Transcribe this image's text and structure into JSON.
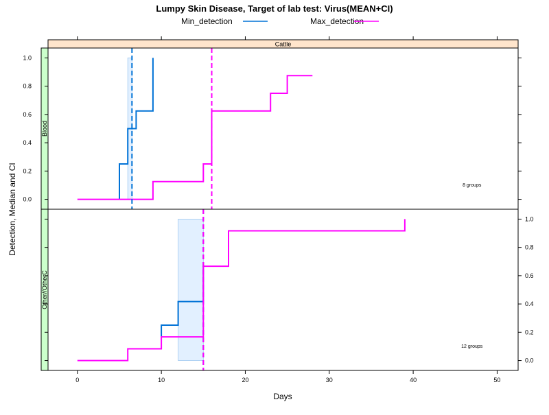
{
  "chart_data": {
    "type": "line",
    "title": "Lumpy Skin Disease, Target of lab test: Virus(MEAN+CI)",
    "xlabel": "Days",
    "ylabel": "Detection, Median and CI",
    "xlim": [
      -3.5,
      52.5
    ],
    "x_ticks": [
      0,
      10,
      20,
      30,
      40,
      50
    ],
    "y_ticks": [
      0,
      0.2,
      0.4,
      0.6,
      0.8,
      1
    ],
    "strip_top": "Cattle",
    "legend": [
      {
        "name": "Min_detection",
        "color": "#0072d6"
      },
      {
        "name": "Max_detection",
        "color": "#ff00ff"
      }
    ],
    "panels": [
      {
        "label": "Blood",
        "note": "8 groups",
        "ylim": [
          -0.07,
          1.07
        ],
        "tick_side": "left",
        "ci_band": {
          "x0": 6.0,
          "x1": 6.5,
          "y0": 0,
          "y1": 1
        },
        "min_median": 6.5,
        "max_median": 16,
        "series": [
          {
            "name": "Min_detection",
            "color": "#0072d6",
            "points": [
              [
                5,
                0
              ],
              [
                5,
                0.25
              ],
              [
                6,
                0.25
              ],
              [
                6,
                0.5
              ],
              [
                7,
                0.5
              ],
              [
                7,
                0.625
              ],
              [
                9,
                0.625
              ],
              [
                9,
                1.0
              ]
            ]
          },
          {
            "name": "Max_detection",
            "color": "#ff00ff",
            "points": [
              [
                0,
                0
              ],
              [
                9,
                0
              ],
              [
                9,
                0.125
              ],
              [
                15,
                0.125
              ],
              [
                15,
                0.25
              ],
              [
                16,
                0.25
              ],
              [
                16,
                0.625
              ],
              [
                23,
                0.625
              ],
              [
                23,
                0.75
              ],
              [
                25,
                0.75
              ],
              [
                25,
                0.875
              ],
              [
                28,
                0.875
              ]
            ]
          }
        ]
      },
      {
        "label": "Other//OtherC",
        "note": "12 groups",
        "ylim": [
          -0.07,
          1.07
        ],
        "tick_side": "right",
        "ci_band": {
          "x0": 12,
          "x1": 15,
          "y0": 0,
          "y1": 1
        },
        "min_median": 15,
        "max_median": 15,
        "series": [
          {
            "name": "Min_detection",
            "color": "#0072d6",
            "points": [
              [
                10,
                0.17
              ],
              [
                10,
                0.25
              ],
              [
                12,
                0.25
              ],
              [
                12,
                0.417
              ],
              [
                15,
                0.417
              ],
              [
                15,
                0.667
              ]
            ]
          },
          {
            "name": "Max_detection",
            "color": "#ff00ff",
            "points": [
              [
                0,
                0
              ],
              [
                6,
                0
              ],
              [
                6,
                0.083
              ],
              [
                10,
                0.083
              ],
              [
                10,
                0.167
              ],
              [
                15,
                0.167
              ],
              [
                15,
                0.667
              ],
              [
                18,
                0.667
              ],
              [
                18,
                0.917
              ],
              [
                39,
                0.917
              ],
              [
                39,
                1.0
              ]
            ]
          }
        ]
      }
    ]
  }
}
